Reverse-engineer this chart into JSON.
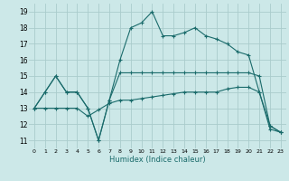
{
  "xlabel": "Humidex (Indice chaleur)",
  "xlim": [
    -0.5,
    23.5
  ],
  "ylim": [
    10.5,
    19.5
  ],
  "yticks": [
    11,
    12,
    13,
    14,
    15,
    16,
    17,
    18,
    19
  ],
  "xticks": [
    0,
    1,
    2,
    3,
    4,
    5,
    6,
    7,
    8,
    9,
    10,
    11,
    12,
    13,
    14,
    15,
    16,
    17,
    18,
    19,
    20,
    21,
    22,
    23
  ],
  "bg_color": "#cce8e8",
  "grid_color": "#aacccc",
  "line_color": "#1a6b6b",
  "line1_x": [
    0,
    1,
    2,
    3,
    4,
    5,
    6,
    7,
    8,
    9,
    10,
    11,
    12,
    13,
    14,
    15,
    16,
    17,
    18,
    19,
    20,
    21,
    22,
    23
  ],
  "line1_y": [
    13,
    14,
    15,
    14,
    14,
    13,
    11,
    13.5,
    16,
    18,
    18.3,
    19,
    17.5,
    17.5,
    17.7,
    18,
    17.5,
    17.3,
    17.0,
    16.5,
    16.3,
    14,
    11.9,
    11.5
  ],
  "line2_x": [
    0,
    1,
    2,
    3,
    4,
    5,
    6,
    7,
    8,
    9,
    10,
    11,
    12,
    13,
    14,
    15,
    16,
    17,
    18,
    19,
    20,
    21,
    22,
    23
  ],
  "line2_y": [
    13,
    14,
    15,
    14,
    14,
    13,
    11,
    13.5,
    15.2,
    15.2,
    15.2,
    15.2,
    15.2,
    15.2,
    15.2,
    15.2,
    15.2,
    15.2,
    15.2,
    15.2,
    15.2,
    15.0,
    11.9,
    11.5
  ],
  "line3_x": [
    0,
    1,
    2,
    3,
    4,
    5,
    6,
    7,
    8,
    9,
    10,
    11,
    12,
    13,
    14,
    15,
    16,
    17,
    18,
    19,
    20,
    21,
    22,
    23
  ],
  "line3_y": [
    13,
    13,
    13,
    13,
    13,
    12.5,
    12.9,
    13.3,
    13.5,
    13.5,
    13.6,
    13.7,
    13.8,
    13.9,
    14.0,
    14.0,
    14.0,
    14.0,
    14.2,
    14.3,
    14.3,
    14.0,
    11.7,
    11.5
  ]
}
